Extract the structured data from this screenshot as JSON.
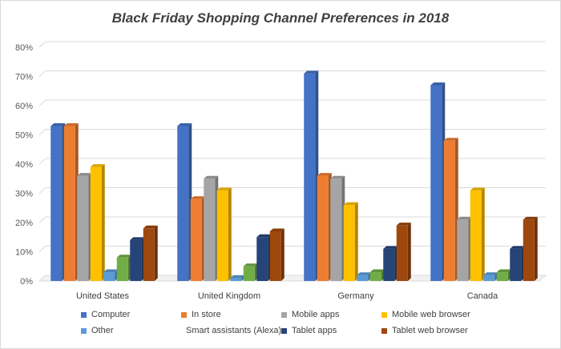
{
  "chart_data": {
    "type": "bar",
    "title": "Black Friday Shopping Channel Preferences in 2018",
    "xlabel": "",
    "ylabel": "",
    "ylim": [
      0,
      80
    ],
    "yticks": [
      "0%",
      "10%",
      "20%",
      "30%",
      "40%",
      "50%",
      "60%",
      "70%",
      "80%"
    ],
    "grid": true,
    "legend_position": "bottom",
    "categories": [
      "United States",
      "United Kingdom",
      "Germany",
      "Canada"
    ],
    "series": [
      {
        "name": "Computer",
        "color": "#4472c4",
        "values": [
          53,
          53,
          71,
          67
        ]
      },
      {
        "name": "In store",
        "color": "#ed7d31",
        "values": [
          53,
          28,
          36,
          48
        ]
      },
      {
        "name": "Mobile apps",
        "color": "#a5a5a5",
        "values": [
          36,
          35,
          35,
          21
        ]
      },
      {
        "name": "Mobile web browser",
        "color": "#ffc000",
        "values": [
          39,
          31,
          26,
          31
        ]
      },
      {
        "name": "Other",
        "color": "#5b9bd5",
        "values": [
          3,
          1,
          2,
          2
        ]
      },
      {
        "name": "Smart assistants (Alexa)",
        "color": "#70ad47",
        "values": [
          8,
          5,
          3,
          3
        ]
      },
      {
        "name": "Tablet apps",
        "color": "#264478",
        "values": [
          14,
          15,
          11,
          11
        ]
      },
      {
        "name": "Tablet web browser",
        "color": "#9e480e",
        "values": [
          18,
          17,
          19,
          21
        ]
      }
    ]
  }
}
